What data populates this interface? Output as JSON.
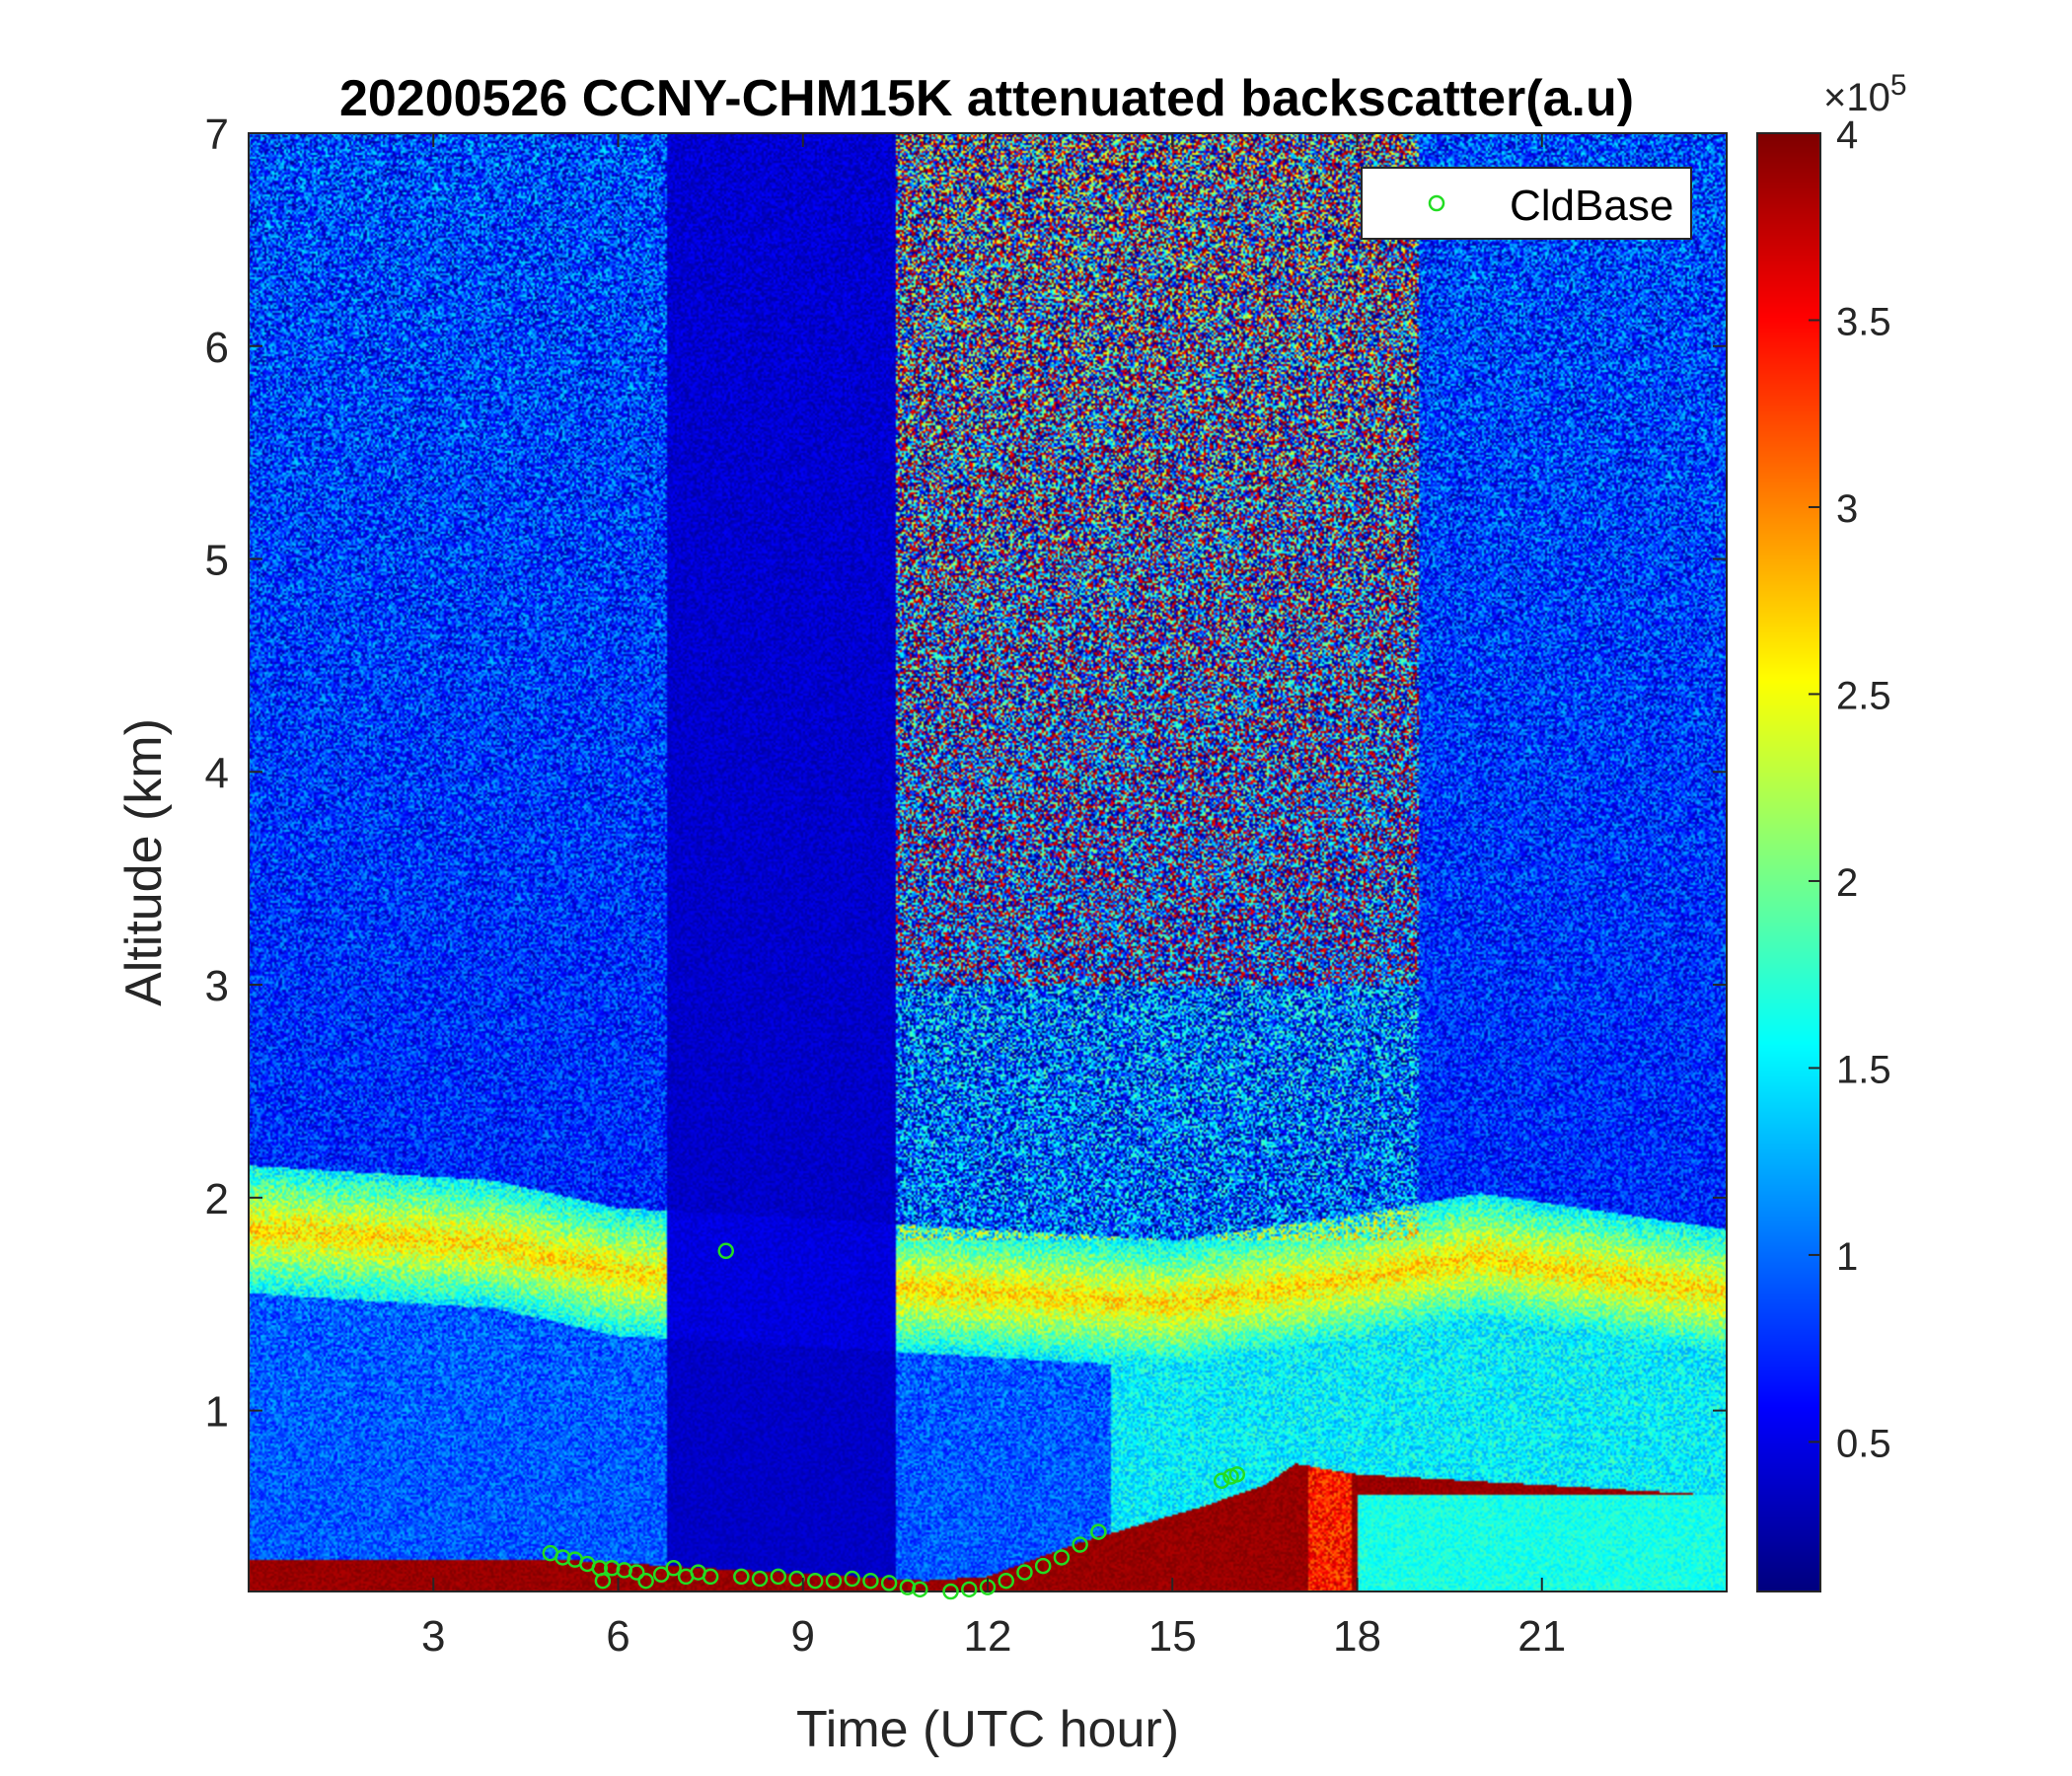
{
  "chart_data": {
    "type": "heatmap",
    "title": "20200526 CCNY-CHM15K attenuated backscatter(a.u)",
    "xlabel": "Time (UTC hour)",
    "ylabel": "Altitude (km)",
    "xlim": [
      0,
      24
    ],
    "ylim": [
      0.15,
      7
    ],
    "x_ticks": [
      3,
      6,
      9,
      12,
      15,
      18,
      21
    ],
    "x_tick_labels": [
      "3",
      "6",
      "9",
      "12",
      "15",
      "18",
      "21"
    ],
    "y_ticks": [
      1,
      2,
      3,
      4,
      5,
      6,
      7
    ],
    "y_tick_labels": [
      "1",
      "2",
      "3",
      "4",
      "5",
      "6",
      "7"
    ],
    "colormap": "jet",
    "colorbar": {
      "clim": [
        0.1,
        4
      ],
      "exponent_label": "×10",
      "exponent_power": "5",
      "ticks": [
        0.5,
        1,
        1.5,
        2,
        2.5,
        3,
        3.5,
        4
      ],
      "tick_labels": [
        "0.5",
        "1",
        "1.5",
        "2",
        "2.5",
        "3",
        "3.5",
        "4"
      ]
    },
    "legend": {
      "location": "top-right",
      "entries": [
        {
          "name": "CldBase",
          "marker": "circle",
          "color": "#22dd22"
        }
      ]
    },
    "series": [
      {
        "name": "CldBase",
        "type": "scatter",
        "x": [
          4.9,
          5.1,
          5.3,
          5.5,
          5.7,
          5.75,
          5.9,
          6.1,
          6.3,
          6.45,
          6.7,
          6.9,
          7.1,
          7.3,
          7.5,
          7.75,
          8.0,
          8.3,
          8.6,
          8.9,
          9.2,
          9.5,
          9.8,
          10.1,
          10.4,
          10.7,
          10.9,
          11.4,
          11.7,
          12.0,
          12.3,
          12.6,
          12.9,
          13.2,
          13.5,
          13.8,
          15.8,
          15.95,
          16.05
        ],
        "y": [
          0.33,
          0.31,
          0.3,
          0.28,
          0.26,
          0.2,
          0.26,
          0.25,
          0.24,
          0.2,
          0.23,
          0.26,
          0.22,
          0.24,
          0.22,
          1.75,
          0.22,
          0.21,
          0.22,
          0.21,
          0.2,
          0.2,
          0.21,
          0.2,
          0.19,
          0.17,
          0.16,
          0.15,
          0.16,
          0.17,
          0.2,
          0.24,
          0.27,
          0.31,
          0.37,
          0.43,
          0.67,
          0.69,
          0.7
        ]
      }
    ],
    "backscatter_field": {
      "description_layers": "near-surface saturated layer, aerosol layer near 1.5-1.8 km, high noise aloft after 10.5 UTC",
      "surface_layer_top_km": [
        [
          0,
          0.3
        ],
        [
          5,
          0.3
        ],
        [
          8,
          0.25
        ],
        [
          11,
          0.2
        ],
        [
          12,
          0.22
        ],
        [
          13.5,
          0.38
        ],
        [
          15.5,
          0.55
        ],
        [
          16.5,
          0.65
        ],
        [
          17,
          0.75
        ],
        [
          18,
          0.7
        ],
        [
          24,
          0.6
        ]
      ],
      "aerosol_layer_center_km": [
        [
          0,
          1.85
        ],
        [
          4,
          1.78
        ],
        [
          6,
          1.65
        ],
        [
          8,
          1.62
        ],
        [
          12,
          1.55
        ],
        [
          15,
          1.5
        ],
        [
          18,
          1.62
        ],
        [
          20,
          1.72
        ],
        [
          24,
          1.55
        ]
      ]
    }
  }
}
